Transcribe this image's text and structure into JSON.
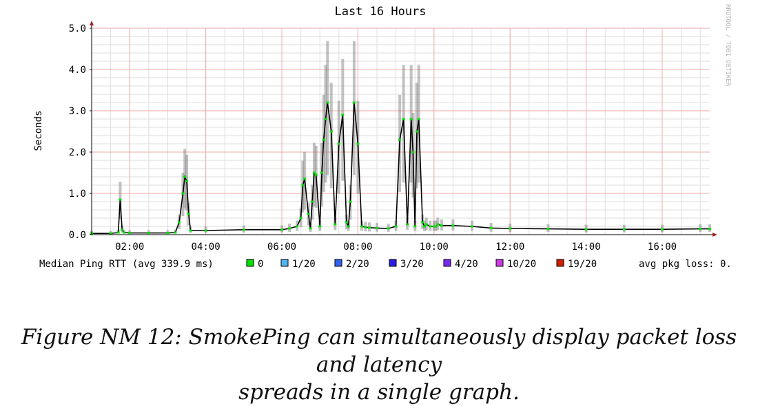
{
  "chart_data": {
    "type": "line",
    "title": "Last 16 Hours",
    "ylabel": "Seconds",
    "xlabel": "",
    "ylim": [
      0,
      5
    ],
    "xlim": [
      1.0,
      17.25
    ],
    "y_ticks": [
      {
        "value": 0,
        "label": "0.0"
      },
      {
        "value": 1,
        "label": "1.0"
      },
      {
        "value": 2,
        "label": "2.0"
      },
      {
        "value": 3,
        "label": "3.0"
      },
      {
        "value": 4,
        "label": "4.0"
      },
      {
        "value": 5,
        "label": "5.0"
      }
    ],
    "x_ticks": [
      {
        "value": 2,
        "label": "02:00"
      },
      {
        "value": 4,
        "label": "04:00"
      },
      {
        "value": 6,
        "label": "06:00"
      },
      {
        "value": 8,
        "label": "08:00"
      },
      {
        "value": 10,
        "label": "10:00"
      },
      {
        "value": 12,
        "label": "12:00"
      },
      {
        "value": 14,
        "label": "14:00"
      },
      {
        "value": 16,
        "label": "16:00"
      }
    ],
    "grid": true,
    "watermark": "RRDTOOL / TOBI OETIKER",
    "series": [
      {
        "name": "Median Ping RTT (avg 339.9 ms)",
        "color": "#000000",
        "x": [
          1.0,
          1.5,
          1.7,
          1.75,
          1.8,
          1.85,
          2.0,
          2.5,
          3.0,
          3.2,
          3.3,
          3.4,
          3.45,
          3.5,
          3.55,
          3.6,
          4.0,
          5.0,
          6.0,
          6.2,
          6.4,
          6.5,
          6.55,
          6.6,
          6.7,
          6.75,
          6.8,
          6.85,
          6.9,
          7.0,
          7.05,
          7.1,
          7.15,
          7.2,
          7.3,
          7.4,
          7.5,
          7.6,
          7.7,
          7.75,
          7.8,
          7.9,
          8.0,
          8.1,
          8.2,
          8.3,
          8.5,
          8.8,
          9.0,
          9.1,
          9.2,
          9.3,
          9.4,
          9.45,
          9.5,
          9.55,
          9.6,
          9.7,
          9.75,
          9.8,
          9.9,
          10.0,
          10.05,
          10.1,
          10.2,
          10.5,
          11.0,
          11.5,
          12.0,
          13.0,
          14.0,
          15.0,
          16.0,
          17.0,
          17.25
        ],
        "y": [
          0.03,
          0.03,
          0.05,
          0.85,
          0.12,
          0.05,
          0.04,
          0.04,
          0.04,
          0.05,
          0.3,
          1.0,
          1.4,
          1.3,
          0.5,
          0.1,
          0.1,
          0.12,
          0.12,
          0.15,
          0.2,
          0.4,
          1.2,
          1.35,
          0.5,
          0.15,
          0.8,
          1.5,
          1.45,
          0.2,
          1.5,
          2.3,
          2.8,
          3.2,
          2.5,
          0.25,
          2.2,
          2.9,
          0.3,
          0.2,
          0.8,
          3.2,
          2.2,
          0.2,
          0.18,
          0.17,
          0.16,
          0.15,
          0.2,
          2.3,
          2.8,
          0.25,
          2.8,
          2.0,
          0.2,
          2.5,
          2.8,
          0.3,
          0.2,
          0.25,
          0.2,
          0.2,
          0.2,
          0.25,
          0.22,
          0.22,
          0.2,
          0.16,
          0.15,
          0.14,
          0.13,
          0.13,
          0.13,
          0.14,
          0.14
        ]
      }
    ],
    "legend": {
      "label": "Median Ping RTT (avg 339.9 ms)",
      "items": [
        {
          "label": "0",
          "color": "#00e000"
        },
        {
          "label": "1/20",
          "color": "#50b4f0"
        },
        {
          "label": "2/20",
          "color": "#3264f0"
        },
        {
          "label": "3/20",
          "color": "#2a1ee0"
        },
        {
          "label": "4/20",
          "color": "#7a2af0"
        },
        {
          "label": "10/20",
          "color": "#c83ce0"
        },
        {
          "label": "19/20",
          "color": "#d21e00"
        }
      ],
      "summary": "avg pkg loss: 0."
    }
  },
  "caption": {
    "line1": "Figure NM 12: SmokePing can simultaneously display packet loss and latency",
    "line2": "spreads in a single graph."
  }
}
